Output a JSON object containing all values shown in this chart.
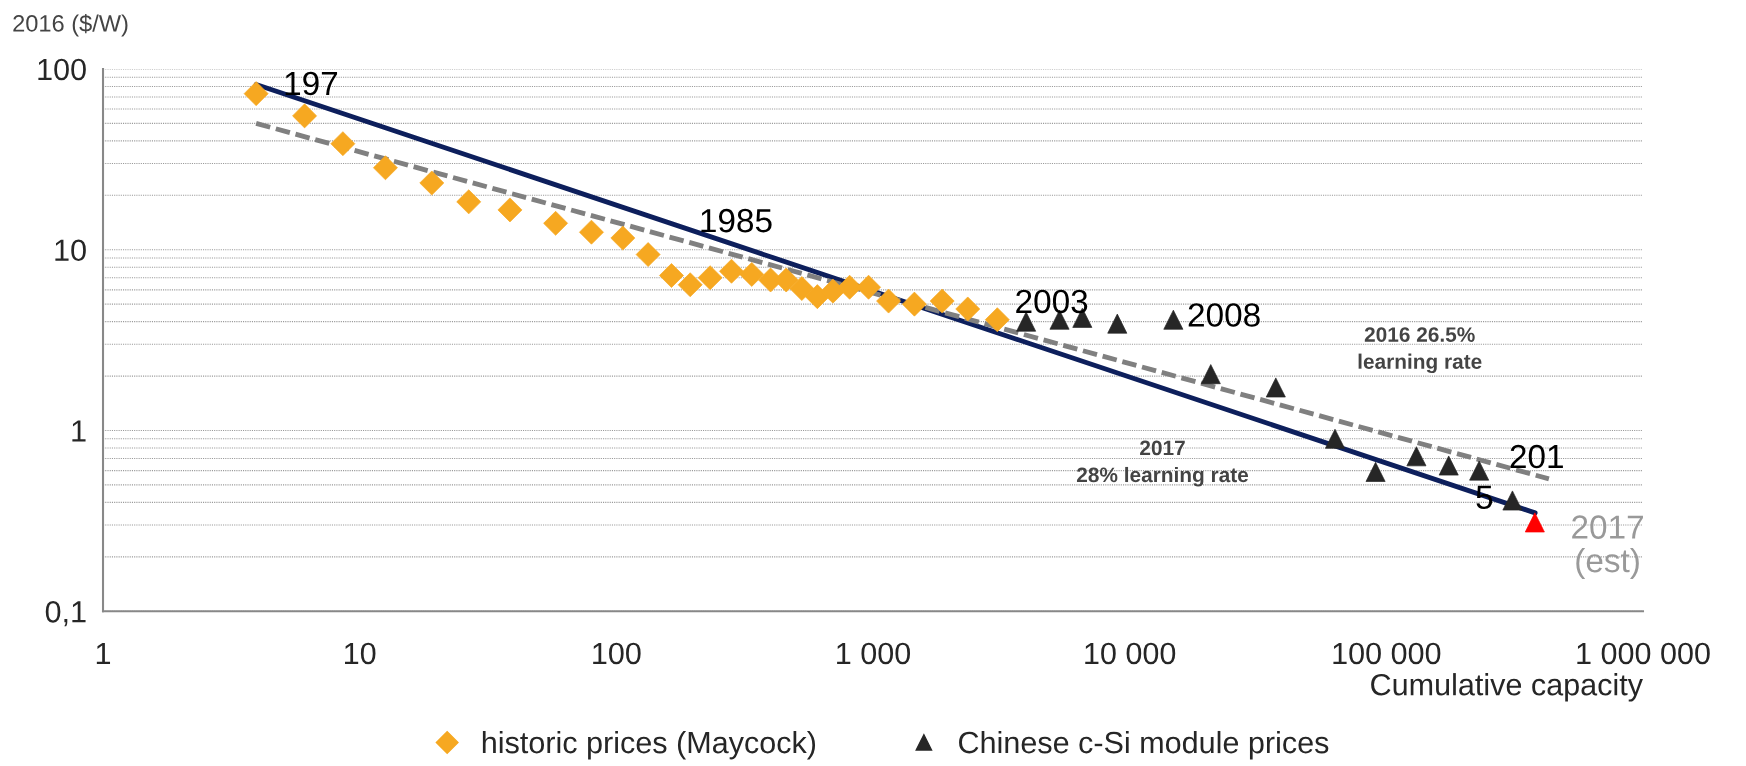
{
  "chart_data": {
    "type": "scatter",
    "xlabel": "Cumulative capacity",
    "ylabel": "2016 ($/W)",
    "log": "xy",
    "grid": "y",
    "legend": "bottom",
    "xlim": [
      1,
      1000000
    ],
    "xticks": [
      1,
      10,
      100,
      {
        "value": 1000,
        "label": "1 000"
      },
      {
        "value": 10000,
        "label": "10 000"
      },
      {
        "value": 100000,
        "label": "100 000"
      },
      {
        "value": 1000000,
        "label": "1 000 000"
      }
    ],
    "ylim": [
      0.1,
      100
    ],
    "yticks": [
      {
        "value": 0.1,
        "label": "0,1"
      },
      {
        "value": 0.2,
        "label": null
      },
      {
        "value": 0.3,
        "label": null
      },
      {
        "value": 0.4,
        "label": null
      },
      {
        "value": 0.5,
        "label": null
      },
      {
        "value": 0.6,
        "label": null
      },
      {
        "value": 0.7,
        "label": null
      },
      {
        "value": 0.8,
        "label": null
      },
      {
        "value": 0.9,
        "label": null
      },
      1,
      {
        "value": 2,
        "label": null
      },
      {
        "value": 3,
        "label": null
      },
      {
        "value": 4,
        "label": null
      },
      {
        "value": 5,
        "label": null
      },
      {
        "value": 6,
        "label": null
      },
      {
        "value": 7,
        "label": null
      },
      {
        "value": 8,
        "label": null
      },
      {
        "value": 9,
        "label": null
      },
      10,
      {
        "value": 20,
        "label": null
      },
      {
        "value": 30,
        "label": null
      },
      {
        "value": 40,
        "label": null
      },
      {
        "value": 50,
        "label": null
      },
      {
        "value": 60,
        "label": null
      },
      {
        "value": 70,
        "label": null
      },
      {
        "value": 80,
        "label": null
      },
      {
        "value": 90,
        "label": null
      },
      100
    ],
    "series": [
      {
        "name": "historic prices (Maycock)",
        "marker": "diamond",
        "color": "#f6a821",
        "x": [
          3.95,
          6.1,
          8.6,
          12.6,
          19.1,
          26.6,
          38.5,
          58,
          80,
          106,
          133,
          164,
          194,
          232,
          281,
          337,
          399,
          459,
          528,
          607,
          698,
          811,
          961,
          1150,
          1450,
          1860,
          2340,
          3050
        ],
        "values": [
          73,
          55,
          38.6,
          28.4,
          23.4,
          18.4,
          16.6,
          14,
          12.5,
          11.6,
          9.4,
          7.2,
          6.4,
          7,
          7.6,
          7.3,
          6.8,
          6.8,
          6.1,
          5.5,
          5.9,
          6.2,
          6.2,
          5.2,
          5,
          5.2,
          4.7,
          4.1
        ]
      },
      {
        "name": "Chinese c-Si module prices",
        "marker": "triangle",
        "color": "#262626",
        "x": [
          3950,
          5330,
          6540,
          8950,
          14800,
          20700,
          37100,
          63100,
          90800,
          131000,
          175000,
          230000,
          310000
        ],
        "values": [
          4,
          4.1,
          4.2,
          3.9,
          4.1,
          2.05,
          1.73,
          0.9,
          0.59,
          0.72,
          0.64,
          0.6,
          0.41
        ]
      },
      {
        "marker": "triangle",
        "color": "#ff0000",
        "x": [
          379000
        ],
        "values": [
          0.31
        ]
      },
      {
        "type": "line",
        "marker": "none",
        "line_style": "solid",
        "color": "#0d1f5c",
        "x": [
          3.95,
          380000
        ],
        "values": [
          82,
          0.35
        ]
      },
      {
        "type": "line",
        "marker": "none",
        "line_style": "dashed",
        "color": "#808080",
        "x": [
          3.95,
          430000
        ],
        "values": [
          50,
          0.54
        ]
      }
    ],
    "annotations": [
      "197",
      "1985",
      "2003",
      "2008",
      "201",
      "5",
      "2017\n(est)",
      "2016 26.5%\nlearning rate",
      "2017\n28% learning rate"
    ]
  }
}
